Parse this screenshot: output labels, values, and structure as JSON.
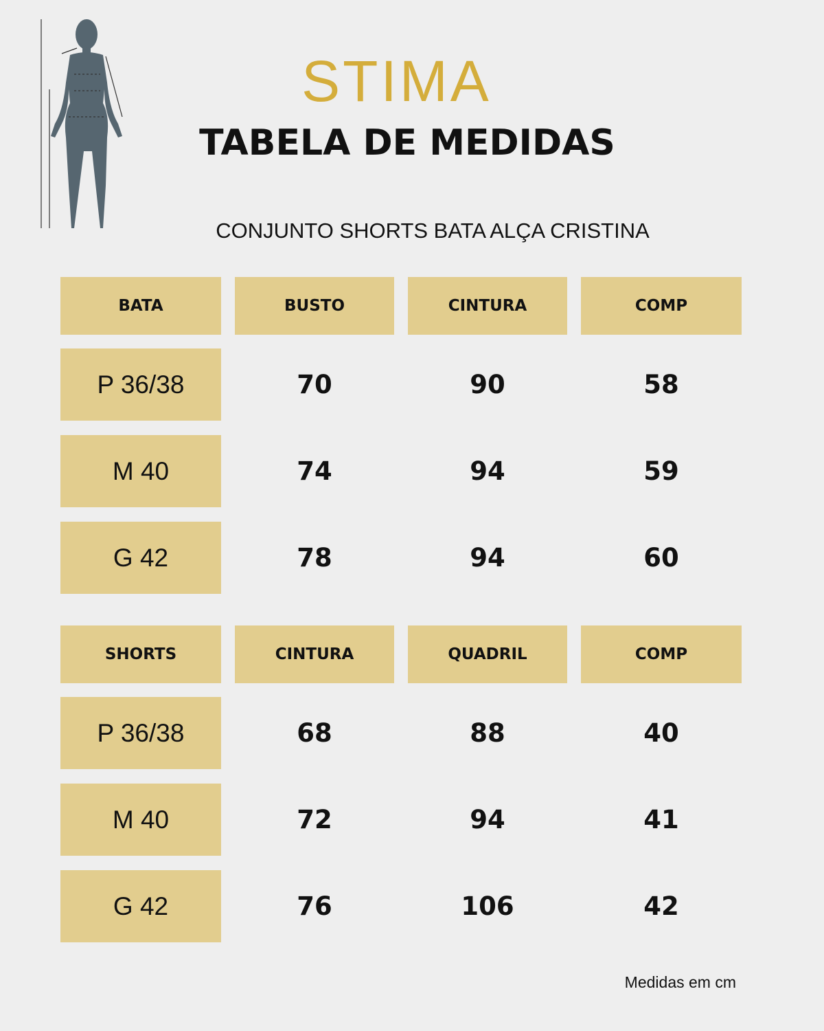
{
  "logo": "STIMA",
  "title": "TABELA DE MEDIDAS",
  "subtitle": "CONJUNTO SHORTS BATA ALÇA CRISTINA",
  "tables": [
    {
      "header": [
        "BATA",
        "BUSTO",
        "CINTURA",
        "COMP"
      ],
      "rows": [
        [
          "P 36/38",
          70,
          90,
          58
        ],
        [
          "M 40",
          74,
          94,
          59
        ],
        [
          "G 42",
          78,
          94,
          60
        ]
      ]
    },
    {
      "header": [
        "SHORTS",
        "CINTURA",
        "QUADRIL",
        "COMP"
      ],
      "rows": [
        [
          "P 36/38",
          68,
          88,
          40
        ],
        [
          "M 40",
          72,
          94,
          41
        ],
        [
          "G 42",
          76,
          106,
          42
        ]
      ]
    }
  ],
  "footer": "Medidas em cm"
}
